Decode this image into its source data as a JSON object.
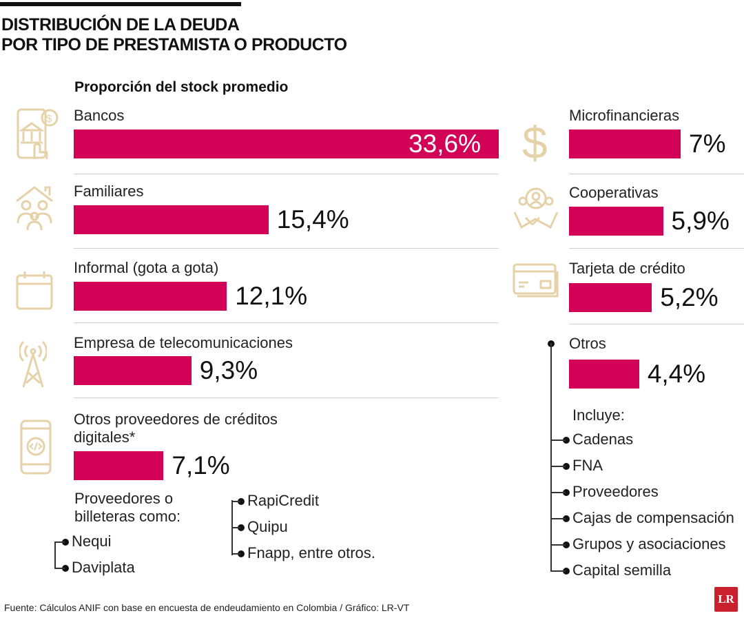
{
  "header": {
    "title_line1": "DISTRIBUCIÓN DE LA DEUDA",
    "title_line2": "POR TIPO DE PRESTAMISTA O PRODUCTO",
    "subtitle": "Proporción del stock promedio"
  },
  "chart_data": {
    "type": "bar",
    "title": "DISTRIBUCIÓN DE LA DEUDA POR TIPO DE PRESTAMISTA O PRODUCTO",
    "subtitle": "Proporción del stock promedio",
    "unit": "%",
    "bar_color": "#d20057",
    "icon_color": "#e6d2a8",
    "categories": [
      "Bancos",
      "Familiares",
      "Informal (gota a gota)",
      "Empresa de telecomunicaciones",
      "Otros proveedores de créditos digitales*",
      "Microfinancieras",
      "Cooperativas",
      "Tarjeta de crédito",
      "Otros"
    ],
    "values": [
      33.6,
      15.4,
      12.1,
      9.3,
      7.1,
      7,
      5.9,
      5.2,
      4.4
    ],
    "labels": [
      "33,6%",
      "15,4%",
      "12,1%",
      "9,3%",
      "7,1%",
      "7%",
      "5,9%",
      "5,2%",
      "4,4%"
    ],
    "icons": [
      "bank-phone-icon",
      "family-house-icon",
      "calendar-icon",
      "antenna-tower-icon",
      "smartphone-code-icon",
      "dollar-icon",
      "cooperative-handshake-icon",
      "credit-card-icon",
      ""
    ]
  },
  "digital_note": {
    "intro": "Proveedores o billeteras como:",
    "items": [
      "Nequi",
      "Daviplata",
      "RapiCredit",
      "Quipu",
      "Fnapp, entre otros."
    ]
  },
  "otros_note": {
    "intro": "Incluye:",
    "items": [
      "Cadenas",
      "FNA",
      "Proveedores",
      "Cajas de compensación",
      "Grupos y asociaciones",
      "Capital semilla"
    ]
  },
  "footer": {
    "source": "Fuente: Cálculos ANIF con base en encuesta de endeudamiento en Colombia / Gráfico: LR-VT",
    "logo": "LR"
  }
}
